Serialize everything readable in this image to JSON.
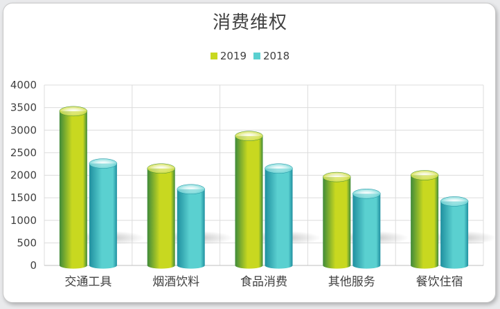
{
  "chart_data": {
    "type": "bar",
    "title": "消费维权",
    "categories": [
      "交通工具",
      "烟酒饮料",
      "食品消费",
      "其他服务",
      "餐饮住宿"
    ],
    "series": [
      {
        "name": "2019",
        "values": [
          3420,
          2150,
          2870,
          1960,
          2000
        ],
        "color": "#c8d820",
        "color_dark": "#3f8a3a"
      },
      {
        "name": "2018",
        "values": [
          2260,
          1690,
          2150,
          1590,
          1420
        ],
        "color": "#5ad0d0",
        "color_dark": "#1f8f9f"
      }
    ],
    "ylim": [
      0,
      4000
    ],
    "yticks": [
      0,
      500,
      1000,
      1500,
      2000,
      2500,
      3000,
      3500,
      4000
    ],
    "xlabel": "",
    "ylabel": "",
    "grid": true,
    "legend_position": "top"
  }
}
